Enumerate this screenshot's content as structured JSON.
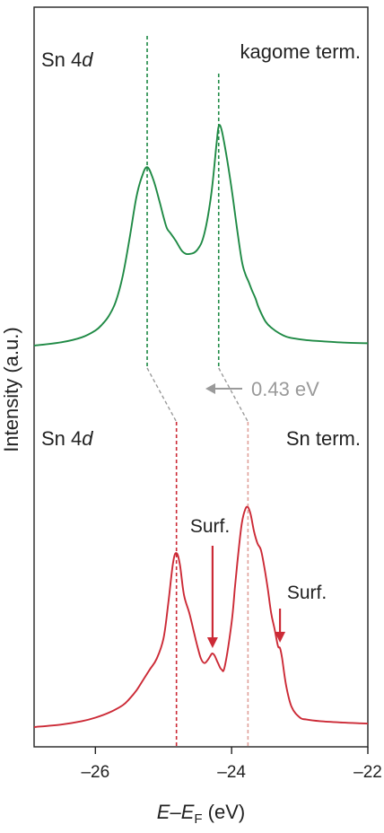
{
  "chart_data": {
    "type": "line",
    "xlabel": {
      "main": "E",
      "dash": "–",
      "sub_main": "E",
      "subscript": "F",
      "unit": " (eV)"
    },
    "ylabel": "Intensity (a.u.)",
    "xlim": [
      -26.9,
      -22.0
    ],
    "x_ticks": [
      -26,
      -24,
      -22
    ],
    "x_tick_labels": [
      "–26",
      "–24",
      "–22"
    ],
    "colors": {
      "kagome": "#1f8a45",
      "sn": "#cc2a36",
      "shift": "#9a9a9a",
      "sn_dashed_right": "#e0a09a"
    },
    "panels": [
      {
        "name": "kagome",
        "label_left": {
          "element": "Sn 4",
          "orbital": "d"
        },
        "label_right": "kagome term.",
        "peak_positions": [
          -25.24,
          -24.19
        ],
        "color": "#1f8a45"
      },
      {
        "name": "sn",
        "label_left": {
          "element": "Sn 4",
          "orbital": "d"
        },
        "label_right": "Sn term.",
        "peak_positions": [
          -24.81,
          -23.76
        ],
        "color": "#cc2a36"
      }
    ],
    "shift_annotation": "0.43 eV",
    "surface_annotations": [
      {
        "text": "Surf.",
        "x": -24.28
      },
      {
        "text": "Surf.",
        "x": -23.29
      }
    ],
    "series": [
      {
        "name": "kagome",
        "x": [
          -26.9,
          -26.5,
          -26.2,
          -26.0,
          -25.9,
          -25.8,
          -25.7,
          -25.6,
          -25.5,
          -25.4,
          -25.32,
          -25.24,
          -25.15,
          -25.06,
          -25.0,
          -24.95,
          -24.9,
          -24.82,
          -24.72,
          -24.62,
          -24.5,
          -24.4,
          -24.3,
          -24.22,
          -24.19,
          -24.15,
          -24.08,
          -24.0,
          -23.92,
          -23.85,
          -23.8,
          -23.75,
          -23.7,
          -23.65,
          -23.6,
          -23.5,
          -23.4,
          -23.3,
          -23.2,
          -23.1,
          -22.9,
          -22.6,
          -22.3,
          -22.0
        ],
        "y": [
          0.0,
          0.014,
          0.035,
          0.064,
          0.09,
          0.127,
          0.187,
          0.293,
          0.451,
          0.626,
          0.713,
          0.756,
          0.703,
          0.612,
          0.545,
          0.497,
          0.477,
          0.444,
          0.398,
          0.388,
          0.407,
          0.475,
          0.639,
          0.859,
          0.928,
          0.917,
          0.812,
          0.664,
          0.494,
          0.358,
          0.304,
          0.27,
          0.233,
          0.2,
          0.159,
          0.101,
          0.072,
          0.052,
          0.038,
          0.031,
          0.023,
          0.017,
          0.012,
          0.01
        ]
      },
      {
        "name": "sn",
        "x": [
          -26.9,
          -26.5,
          -26.2,
          -26.0,
          -25.8,
          -25.6,
          -25.5,
          -25.4,
          -25.3,
          -25.2,
          -25.1,
          -25.0,
          -24.93,
          -24.86,
          -24.81,
          -24.76,
          -24.7,
          -24.62,
          -24.55,
          -24.5,
          -24.45,
          -24.4,
          -24.35,
          -24.3,
          -24.28,
          -24.25,
          -24.2,
          -24.15,
          -24.1,
          -24.0,
          -23.95,
          -23.9,
          -23.85,
          -23.8,
          -23.76,
          -23.72,
          -23.67,
          -23.62,
          -23.57,
          -23.52,
          -23.47,
          -23.42,
          -23.37,
          -23.32,
          -23.29,
          -23.26,
          -23.2,
          -23.12,
          -23.0,
          -22.9,
          -22.7,
          -22.4,
          -22.1,
          -22.0
        ],
        "y": [
          0.0,
          0.012,
          0.028,
          0.045,
          0.069,
          0.104,
          0.135,
          0.174,
          0.225,
          0.276,
          0.327,
          0.424,
          0.592,
          0.785,
          0.832,
          0.778,
          0.633,
          0.544,
          0.449,
          0.383,
          0.327,
          0.306,
          0.321,
          0.347,
          0.352,
          0.342,
          0.306,
          0.276,
          0.291,
          0.5,
          0.673,
          0.837,
          0.975,
          1.041,
          1.051,
          1.016,
          0.934,
          0.878,
          0.847,
          0.765,
          0.663,
          0.546,
          0.47,
          0.388,
          0.378,
          0.332,
          0.199,
          0.097,
          0.046,
          0.036,
          0.028,
          0.022,
          0.018,
          0.017
        ]
      }
    ]
  }
}
